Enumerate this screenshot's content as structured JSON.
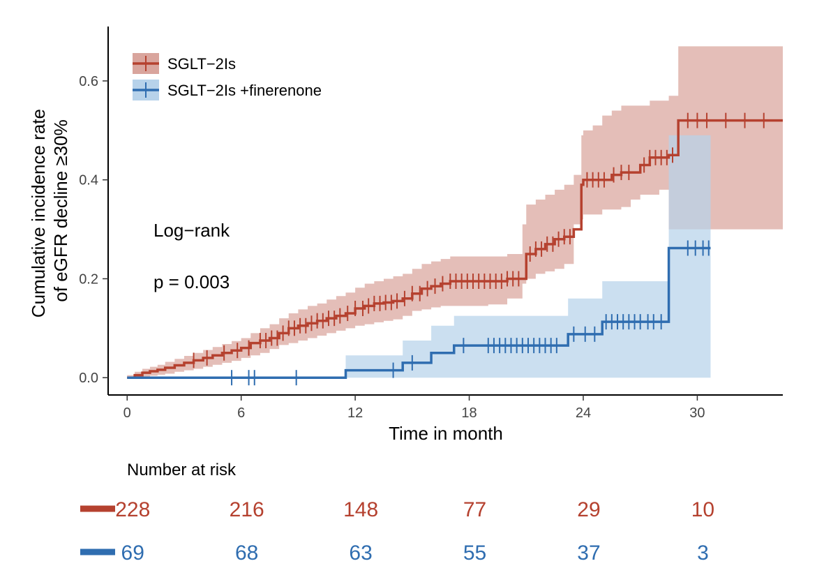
{
  "chart_data": {
    "type": "line",
    "subtype": "kaplan-meier cumulative incidence with confidence bands",
    "xlabel": "Time in month",
    "ylabel_lines": [
      "Cumulative incidence rate",
      "of eGFR decline ≥30%"
    ],
    "xlim": [
      -1,
      34.5
    ],
    "ylim": [
      -0.035,
      0.71
    ],
    "xticks": [
      0,
      6,
      12,
      18,
      24,
      30
    ],
    "yticks": [
      0.0,
      0.2,
      0.4,
      0.6
    ],
    "ytick_labels": [
      "0.0",
      "0.2",
      "0.4",
      "0.6"
    ],
    "grid": false,
    "legend_position": "top-left",
    "annotations": [
      "Log−rank",
      "p = 0.003"
    ],
    "series": [
      {
        "name": "SGLT−2Is",
        "color": "#b5412f",
        "band_color": "#d9a59d",
        "x": [
          0,
          0.4,
          0.8,
          1.2,
          1.6,
          2.0,
          2.5,
          3.0,
          3.5,
          4.0,
          4.5,
          5.0,
          5.5,
          6.0,
          6.5,
          7.0,
          7.5,
          8.0,
          8.5,
          9.0,
          9.5,
          10.0,
          10.5,
          11.0,
          11.5,
          12.0,
          12.5,
          13.0,
          13.5,
          14.0,
          14.5,
          15.0,
          15.5,
          16.0,
          16.5,
          17.0,
          18.0,
          19.0,
          20.0,
          20.8,
          21.0,
          21.5,
          22.0,
          22.5,
          23.0,
          23.5,
          23.9,
          24.0,
          24.5,
          25.0,
          25.5,
          26.0,
          26.5,
          27.0,
          27.5,
          28.0,
          28.5,
          29.0,
          29.2,
          29.5,
          30.0,
          31.0,
          32.0,
          33.0,
          34.5
        ],
        "y": [
          0.0,
          0.005,
          0.01,
          0.013,
          0.016,
          0.02,
          0.025,
          0.03,
          0.035,
          0.04,
          0.045,
          0.05,
          0.055,
          0.06,
          0.07,
          0.075,
          0.08,
          0.09,
          0.1,
          0.105,
          0.11,
          0.115,
          0.12,
          0.125,
          0.13,
          0.14,
          0.145,
          0.15,
          0.152,
          0.155,
          0.16,
          0.17,
          0.18,
          0.185,
          0.19,
          0.195,
          0.195,
          0.195,
          0.2,
          0.2,
          0.25,
          0.26,
          0.27,
          0.28,
          0.285,
          0.3,
          0.39,
          0.4,
          0.4,
          0.4,
          0.41,
          0.415,
          0.415,
          0.43,
          0.445,
          0.445,
          0.45,
          0.52,
          0.52,
          0.52,
          0.52,
          0.52,
          0.52,
          0.52,
          0.52
        ],
        "ci_lower": [
          0.0,
          0.0,
          0.0,
          0.002,
          0.004,
          0.006,
          0.008,
          0.012,
          0.015,
          0.018,
          0.022,
          0.026,
          0.03,
          0.034,
          0.04,
          0.045,
          0.05,
          0.058,
          0.066,
          0.07,
          0.075,
          0.08,
          0.085,
          0.09,
          0.095,
          0.1,
          0.105,
          0.108,
          0.112,
          0.115,
          0.118,
          0.125,
          0.135,
          0.138,
          0.142,
          0.145,
          0.145,
          0.145,
          0.148,
          0.16,
          0.19,
          0.2,
          0.21,
          0.215,
          0.22,
          0.23,
          0.31,
          0.32,
          0.33,
          0.33,
          0.34,
          0.34,
          0.345,
          0.36,
          0.37,
          0.37,
          0.38,
          0.3,
          0.3,
          0.3,
          0.3,
          0.3,
          0.3,
          0.3,
          0.3
        ],
        "ci_upper": [
          0.005,
          0.012,
          0.018,
          0.022,
          0.026,
          0.032,
          0.038,
          0.044,
          0.05,
          0.056,
          0.062,
          0.068,
          0.074,
          0.08,
          0.09,
          0.1,
          0.108,
          0.12,
          0.13,
          0.138,
          0.145,
          0.15,
          0.158,
          0.165,
          0.172,
          0.182,
          0.19,
          0.195,
          0.2,
          0.205,
          0.21,
          0.22,
          0.23,
          0.235,
          0.24,
          0.245,
          0.245,
          0.245,
          0.25,
          0.31,
          0.35,
          0.36,
          0.37,
          0.38,
          0.39,
          0.41,
          0.49,
          0.5,
          0.51,
          0.53,
          0.54,
          0.55,
          0.55,
          0.55,
          0.56,
          0.56,
          0.57,
          0.67,
          0.67,
          0.67,
          0.67,
          0.67,
          0.67,
          0.67,
          0.67
        ],
        "censor_x": [
          3.5,
          4.2,
          5.1,
          5.8,
          6.4,
          7.0,
          7.3,
          7.6,
          7.9,
          8.2,
          8.5,
          8.8,
          9.1,
          9.4,
          9.7,
          10.0,
          10.3,
          10.6,
          10.9,
          11.2,
          11.6,
          12.0,
          12.4,
          12.7,
          13.0,
          13.3,
          13.6,
          13.9,
          14.2,
          14.6,
          15.0,
          15.4,
          15.8,
          16.2,
          16.6,
          17.0,
          17.3,
          17.6,
          17.9,
          18.2,
          18.5,
          18.8,
          19.1,
          19.4,
          19.7,
          20.0,
          20.3,
          20.6,
          21.2,
          21.5,
          21.8,
          22.1,
          22.4,
          22.7,
          23.0,
          23.3,
          24.2,
          24.5,
          24.8,
          25.1,
          25.6,
          26.0,
          26.4,
          27.2,
          27.5,
          27.8,
          28.1,
          28.4,
          28.7,
          29.5,
          30.0,
          30.5,
          31.5,
          32.5,
          33.5
        ]
      },
      {
        "name": "SGLT−2Is +finerenone",
        "color": "#2f6db0",
        "band_color": "#b7d2ea",
        "x": [
          0,
          11.5,
          14.5,
          16.0,
          17.2,
          23.2,
          25.0,
          28.5,
          30.7
        ],
        "y": [
          0.0,
          0.015,
          0.03,
          0.05,
          0.065,
          0.088,
          0.113,
          0.262,
          0.262
        ],
        "ci_lower": [
          0.0,
          0.0,
          0.0,
          0.0,
          0.0,
          0.0,
          0.0,
          0.0,
          0.0
        ],
        "ci_upper": [
          0.0,
          0.045,
          0.075,
          0.105,
          0.125,
          0.16,
          0.195,
          0.49,
          0.49
        ],
        "censor_x": [
          5.5,
          6.4,
          6.7,
          8.9,
          14.0,
          15.0,
          17.7,
          19.0,
          19.3,
          19.6,
          19.9,
          20.2,
          20.5,
          20.8,
          21.1,
          21.4,
          21.7,
          22.0,
          22.3,
          22.6,
          23.5,
          24.1,
          24.6,
          25.2,
          25.5,
          25.8,
          26.1,
          26.4,
          26.7,
          27.0,
          27.4,
          27.7,
          28.1,
          29.5,
          29.9,
          30.3,
          30.6
        ]
      }
    ],
    "risk_table": {
      "title": "Number at risk",
      "times": [
        0,
        6,
        12,
        18,
        24,
        30
      ],
      "rows": [
        {
          "series": "SGLT−2Is",
          "color": "#b5412f",
          "values": [
            "228",
            "216",
            "148",
            "77",
            "29",
            "10"
          ]
        },
        {
          "series": "SGLT−2Is +finerenone",
          "color": "#2f6db0",
          "values": [
            "69",
            "68",
            "63",
            "55",
            "37",
            "3"
          ]
        }
      ]
    }
  }
}
